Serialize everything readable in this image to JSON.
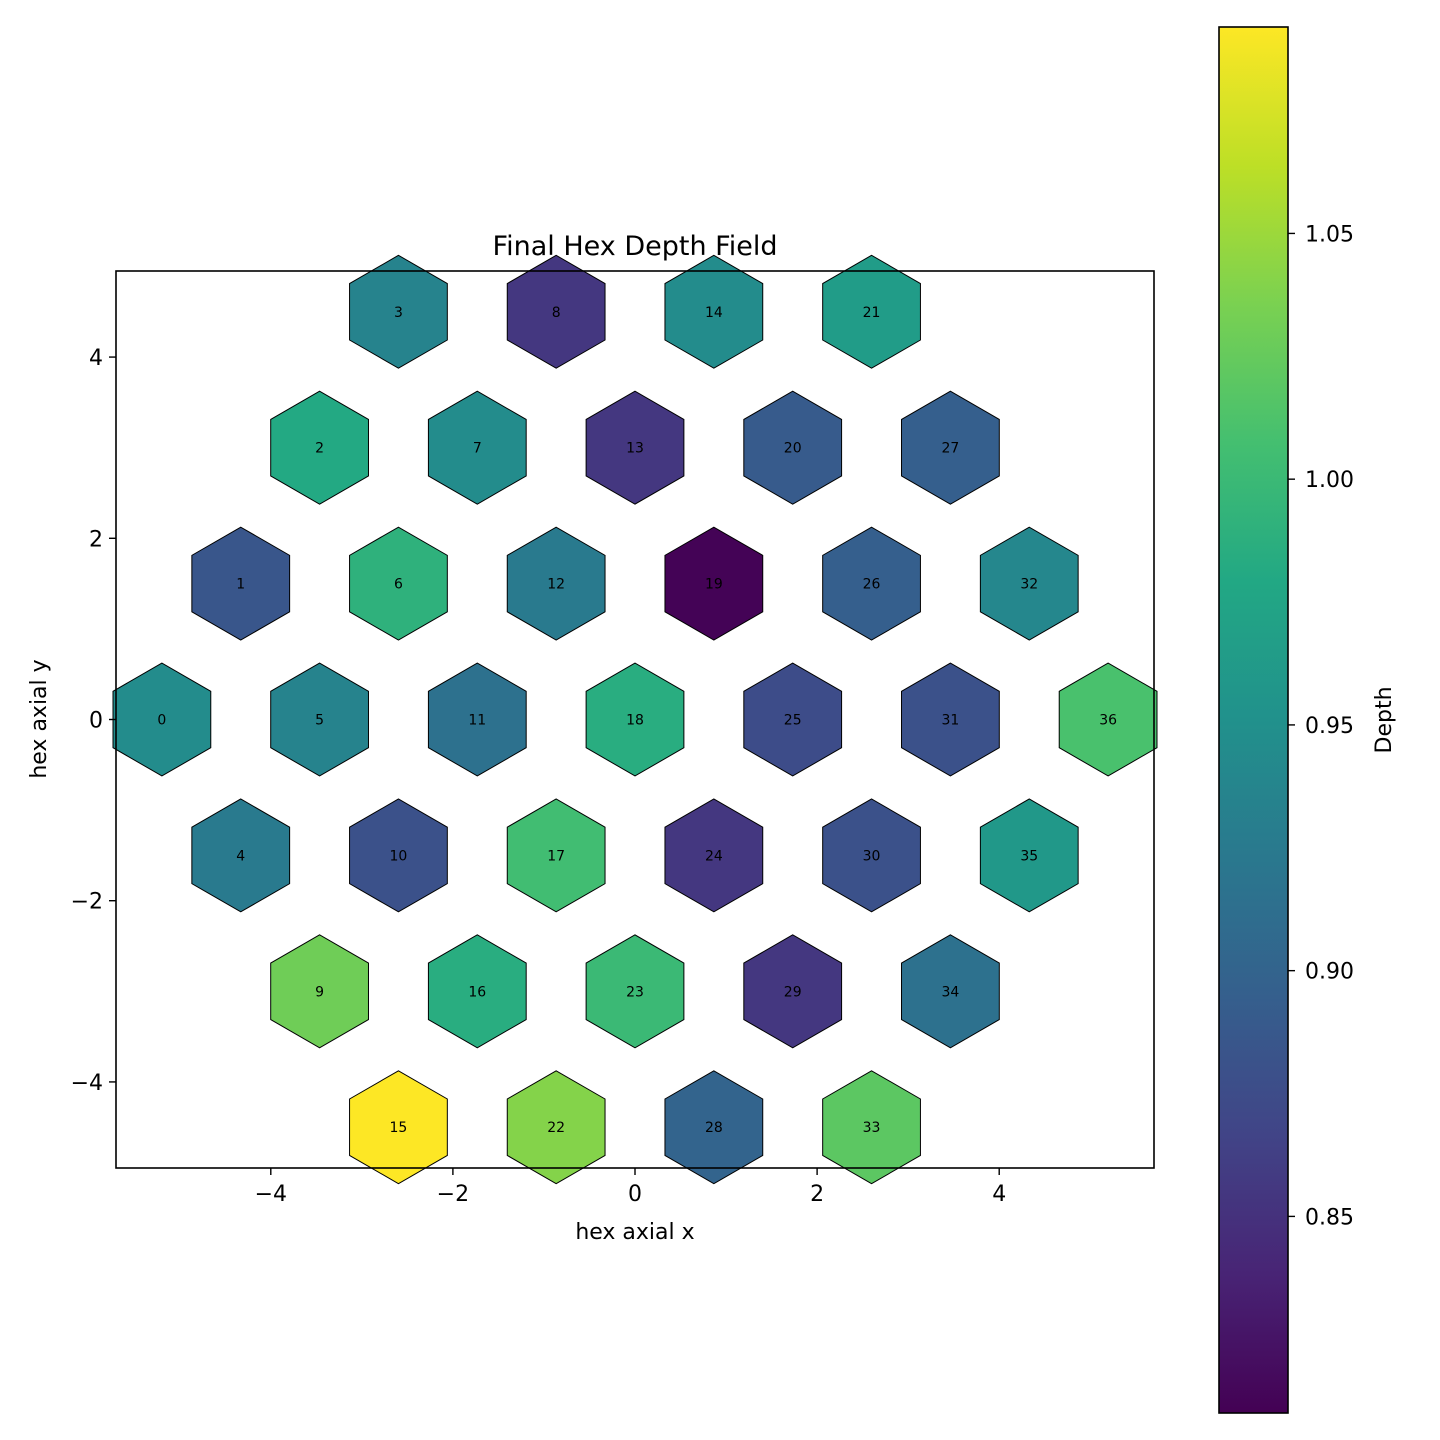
{
  "chart_data": {
    "type": "heatmap",
    "title": "Final Hex Depth Field",
    "xlabel": "hex axial x",
    "ylabel": "hex axial y",
    "xlim": [
      -5.7,
      5.7
    ],
    "ylim": [
      -4.95,
      4.95
    ],
    "xticks": [
      {
        "v": -4,
        "label": "−4"
      },
      {
        "v": -2,
        "label": "−2"
      },
      {
        "v": 0,
        "label": "0"
      },
      {
        "v": 2,
        "label": "2"
      },
      {
        "v": 4,
        "label": "4"
      }
    ],
    "yticks": [
      {
        "v": 4,
        "label": "4"
      },
      {
        "v": 2,
        "label": "2"
      },
      {
        "v": 0,
        "label": "0"
      },
      {
        "v": -2,
        "label": "−2"
      },
      {
        "v": -4,
        "label": "−4"
      }
    ],
    "colorbar": {
      "label": "Depth",
      "colormap": "viridis",
      "range": [
        0.81,
        1.092
      ],
      "ticks": [
        {
          "v": 1.05,
          "label": "1.05"
        },
        {
          "v": 1.0,
          "label": "1.00"
        },
        {
          "v": 0.95,
          "label": "0.95"
        },
        {
          "v": 0.9,
          "label": "0.90"
        },
        {
          "v": 0.85,
          "label": "0.85"
        }
      ]
    },
    "cells": [
      {
        "id": "0",
        "x": -5.196,
        "y": 0.0,
        "depth": 0.945
      },
      {
        "id": "1",
        "x": -4.33,
        "y": 1.5,
        "depth": 0.885
      },
      {
        "id": "2",
        "x": -3.464,
        "y": 3.0,
        "depth": 0.98
      },
      {
        "id": "3",
        "x": -2.598,
        "y": 4.5,
        "depth": 0.935
      },
      {
        "id": "4",
        "x": -4.33,
        "y": -1.5,
        "depth": 0.925
      },
      {
        "id": "5",
        "x": -3.464,
        "y": 0.0,
        "depth": 0.935
      },
      {
        "id": "6",
        "x": -2.598,
        "y": 1.5,
        "depth": 0.99
      },
      {
        "id": "7",
        "x": -1.732,
        "y": 3.0,
        "depth": 0.945
      },
      {
        "id": "8",
        "x": -0.866,
        "y": 4.5,
        "depth": 0.855
      },
      {
        "id": "9",
        "x": -3.464,
        "y": -3.0,
        "depth": 1.03
      },
      {
        "id": "10",
        "x": -2.598,
        "y": -1.5,
        "depth": 0.88
      },
      {
        "id": "11",
        "x": -1.732,
        "y": 0.0,
        "depth": 0.915
      },
      {
        "id": "12",
        "x": -0.866,
        "y": 1.5,
        "depth": 0.925
      },
      {
        "id": "13",
        "x": 0.0,
        "y": 3.0,
        "depth": 0.855
      },
      {
        "id": "14",
        "x": 0.866,
        "y": 4.5,
        "depth": 0.945
      },
      {
        "id": "15",
        "x": -2.598,
        "y": -4.5,
        "depth": 1.092
      },
      {
        "id": "16",
        "x": -1.732,
        "y": -3.0,
        "depth": 0.985
      },
      {
        "id": "17",
        "x": -0.866,
        "y": -1.5,
        "depth": 1.005
      },
      {
        "id": "18",
        "x": 0.0,
        "y": 0.0,
        "depth": 0.985
      },
      {
        "id": "19",
        "x": 0.866,
        "y": 1.5,
        "depth": 0.812
      },
      {
        "id": "20",
        "x": 1.732,
        "y": 3.0,
        "depth": 0.89
      },
      {
        "id": "21",
        "x": 2.598,
        "y": 4.5,
        "depth": 0.965
      },
      {
        "id": "22",
        "x": -0.866,
        "y": -4.5,
        "depth": 1.04
      },
      {
        "id": "23",
        "x": 0.0,
        "y": -3.0,
        "depth": 1.0
      },
      {
        "id": "24",
        "x": 0.866,
        "y": -1.5,
        "depth": 0.855
      },
      {
        "id": "25",
        "x": 1.732,
        "y": 0.0,
        "depth": 0.875
      },
      {
        "id": "26",
        "x": 2.598,
        "y": 1.5,
        "depth": 0.895
      },
      {
        "id": "27",
        "x": 3.464,
        "y": 3.0,
        "depth": 0.895
      },
      {
        "id": "28",
        "x": 0.866,
        "y": -4.5,
        "depth": 0.9
      },
      {
        "id": "29",
        "x": 1.732,
        "y": -3.0,
        "depth": 0.855
      },
      {
        "id": "30",
        "x": 2.598,
        "y": -1.5,
        "depth": 0.88
      },
      {
        "id": "31",
        "x": 3.464,
        "y": 0.0,
        "depth": 0.88
      },
      {
        "id": "32",
        "x": 4.33,
        "y": 1.5,
        "depth": 0.94
      },
      {
        "id": "33",
        "x": 2.598,
        "y": -4.5,
        "depth": 1.02
      },
      {
        "id": "34",
        "x": 3.464,
        "y": -3.0,
        "depth": 0.915
      },
      {
        "id": "35",
        "x": 4.33,
        "y": -1.5,
        "depth": 0.96
      },
      {
        "id": "36",
        "x": 5.196,
        "y": 0.0,
        "depth": 1.01
      }
    ]
  }
}
